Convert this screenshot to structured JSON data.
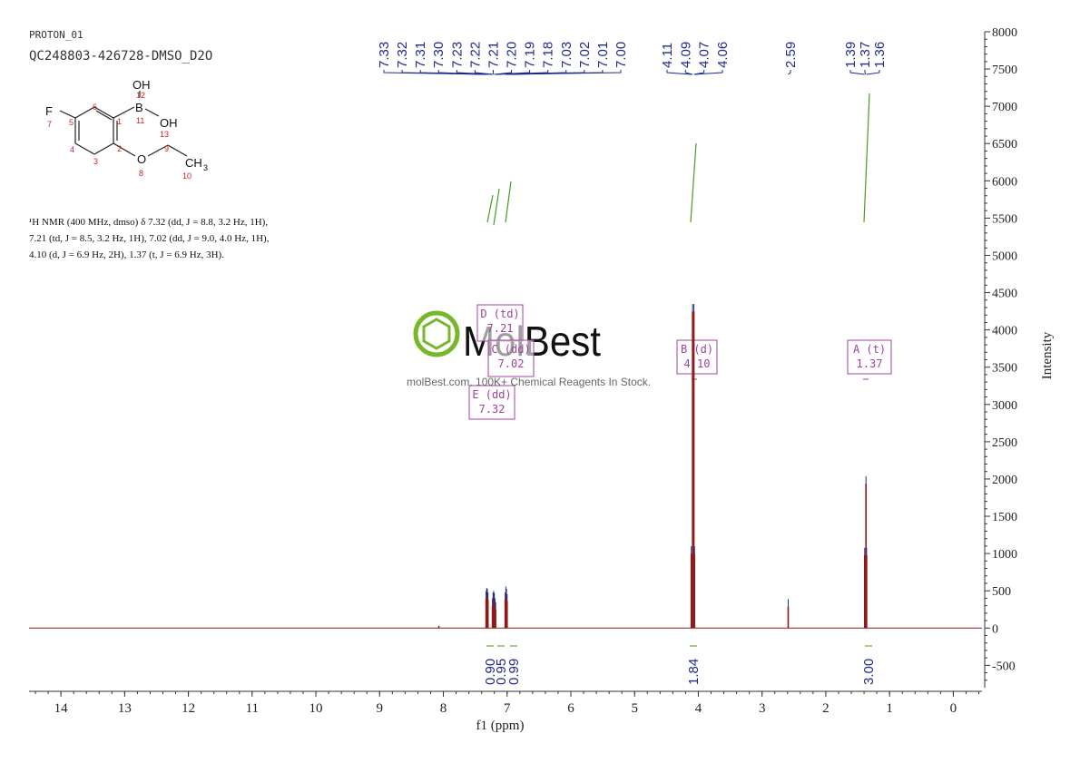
{
  "header": {
    "experiment": "PROTON_01",
    "sample": "QC248803-426728-DMSO_D2O"
  },
  "structure": {
    "atoms": {
      "F": "F",
      "OH_top": "OH",
      "B": "B",
      "OH_right": "OH",
      "O": "O",
      "CH3": "CH",
      "sub3": "3"
    },
    "numbers": {
      "n1": "1",
      "n2": "2",
      "n3": "3",
      "n4": "4",
      "n5": "5",
      "n6": "6",
      "n7": "7",
      "n8": "8",
      "n9": "9",
      "n10": "10",
      "n11": "11",
      "n12": "12",
      "n13": "13"
    }
  },
  "nmr_text": {
    "line1": "¹H NMR (400 MHz, dmso) δ 7.32 (dd, J = 8.8, 3.2 Hz, 1H),",
    "line2": "7.21 (td, J = 8.5, 3.2 Hz, 1H), 7.02 (dd, J = 9.0, 4.0 Hz, 1H),",
    "line3": "4.10 (d, J = 6.9 Hz, 2H), 1.37 (t, J = 6.9 Hz, 3H)."
  },
  "watermark": {
    "brand": "MolBest",
    "tagline": "molBest.com, 100K+ Chemical Reagents In Stock."
  },
  "colors": {
    "spectrum": "#8b1a1a",
    "peak_labels": "#1f2a8c",
    "integral": "#4a9a2a",
    "multiplet_box": "#a040a0",
    "axis": "#333333",
    "logo_green": "#76b82a"
  },
  "chart_data": {
    "type": "line",
    "xlabel": "f1 (ppm)",
    "ylabel": "Intensity",
    "xlim": [
      14.5,
      -0.45
    ],
    "ylim": [
      -800,
      8000
    ],
    "x_ticks": [
      14,
      13,
      12,
      11,
      10,
      9,
      8,
      7,
      6,
      5,
      4,
      3,
      2,
      1,
      0
    ],
    "y_ticks": [
      -500,
      0,
      500,
      1000,
      1500,
      2000,
      2500,
      3000,
      3500,
      4000,
      4500,
      5000,
      5500,
      6000,
      6500,
      7000,
      7500,
      8000
    ],
    "peak_labels": [
      "7.33",
      "7.32",
      "7.31",
      "7.30",
      "7.23",
      "7.22",
      "7.21",
      "7.20",
      "7.19",
      "7.18",
      "7.03",
      "7.02",
      "7.01",
      "7.00",
      "4.11",
      "4.09",
      "4.07",
      "4.06",
      "2.59",
      "1.39",
      "1.37",
      "1.36"
    ],
    "peaks": [
      {
        "ppm": 7.33,
        "height": 400
      },
      {
        "ppm": 7.32,
        "height": 440
      },
      {
        "ppm": 7.31,
        "height": 430
      },
      {
        "ppm": 7.3,
        "height": 380
      },
      {
        "ppm": 7.23,
        "height": 300
      },
      {
        "ppm": 7.22,
        "height": 380
      },
      {
        "ppm": 7.21,
        "height": 400
      },
      {
        "ppm": 7.2,
        "height": 370
      },
      {
        "ppm": 7.19,
        "height": 300
      },
      {
        "ppm": 7.18,
        "height": 250
      },
      {
        "ppm": 7.03,
        "height": 380
      },
      {
        "ppm": 7.02,
        "height": 460
      },
      {
        "ppm": 7.01,
        "height": 430
      },
      {
        "ppm": 7.0,
        "height": 360
      },
      {
        "ppm": 4.11,
        "height": 1000
      },
      {
        "ppm": 4.09,
        "height": 4250
      },
      {
        "ppm": 4.07,
        "height": 4250
      },
      {
        "ppm": 4.06,
        "height": 1000
      },
      {
        "ppm": 2.59,
        "height": 290
      },
      {
        "ppm": 1.39,
        "height": 980
      },
      {
        "ppm": 1.37,
        "height": 1940
      },
      {
        "ppm": 1.36,
        "height": 980
      },
      {
        "ppm": 8.07,
        "height": 30
      }
    ],
    "integrals": [
      {
        "ppm": 7.32,
        "value": "0.90"
      },
      {
        "ppm": 7.21,
        "value": "0.95"
      },
      {
        "ppm": 7.02,
        "value": "0.99"
      },
      {
        "ppm": 4.09,
        "value": "1.84"
      },
      {
        "ppm": 1.37,
        "value": "3.00"
      }
    ],
    "multiplets": [
      {
        "id": "D",
        "type": "td",
        "shift": "7.21"
      },
      {
        "id": "C",
        "type": "dd",
        "shift": "7.02"
      },
      {
        "id": "E",
        "type": "dd",
        "shift": "7.32"
      },
      {
        "id": "B",
        "type": "d",
        "shift": "4.10"
      },
      {
        "id": "A",
        "type": "t",
        "shift": "1.37"
      }
    ]
  }
}
